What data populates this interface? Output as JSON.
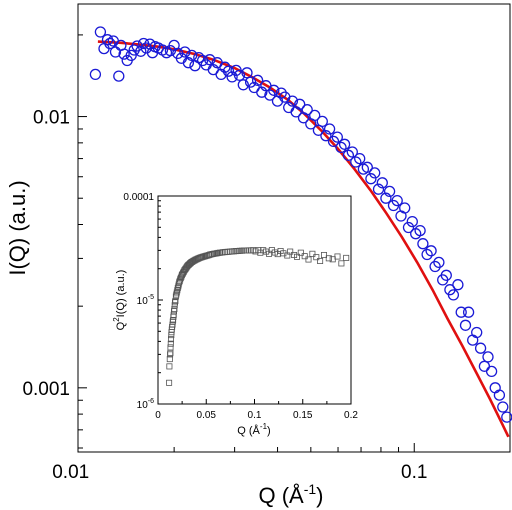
{
  "chart_data": [
    {
      "type": "scatter",
      "x_scale": "log",
      "y_scale": "log",
      "xlim": [
        0.0105,
        0.19
      ],
      "ylim": [
        0.00058,
        0.026
      ],
      "xlabel": "Q (Å",
      "xlabel_sup": "-1",
      "xlabel_end": ")",
      "ylabel": "I(Q) (a.u.)",
      "x_ticks": [
        {
          "value": 0.01,
          "label": "0.01"
        },
        {
          "value": 0.1,
          "label": "0.1"
        }
      ],
      "y_ticks": [
        {
          "value": 0.001,
          "label": "0.001"
        },
        {
          "value": 0.01,
          "label": "0.01"
        }
      ],
      "marker_color": "#1a1ad6",
      "fit_color": "#e01010",
      "series": [
        {
          "kind": "markers",
          "x": [
            0.0118,
            0.0122,
            0.0125,
            0.0128,
            0.013,
            0.0133,
            0.0135,
            0.0138,
            0.014,
            0.0143,
            0.0146,
            0.015,
            0.0153,
            0.0156,
            0.016,
            0.0163,
            0.0166,
            0.017,
            0.0173,
            0.0176,
            0.018,
            0.0185,
            0.019,
            0.0195,
            0.02,
            0.0205,
            0.021,
            0.0215,
            0.022,
            0.0225,
            0.023,
            0.0236,
            0.0242,
            0.0248,
            0.0254,
            0.026,
            0.0267,
            0.0274,
            0.0281,
            0.0288,
            0.0295,
            0.0303,
            0.031,
            0.0318,
            0.0326,
            0.0334,
            0.0342,
            0.035,
            0.036,
            0.037,
            0.038,
            0.039,
            0.04,
            0.041,
            0.042,
            0.0431,
            0.0442,
            0.0453,
            0.0464,
            0.0476,
            0.0488,
            0.05,
            0.0513,
            0.0526,
            0.054,
            0.0553,
            0.0567,
            0.0582,
            0.0597,
            0.0612,
            0.0627,
            0.0643,
            0.066,
            0.0676,
            0.0694,
            0.0711,
            0.073,
            0.0748,
            0.0767,
            0.0787,
            0.0807,
            0.0827,
            0.0848,
            0.087,
            0.0892,
            0.0915,
            0.0938,
            0.0962,
            0.0987,
            0.101,
            0.104,
            0.106,
            0.109,
            0.112,
            0.115,
            0.118,
            0.121,
            0.124,
            0.127,
            0.13,
            0.134,
            0.137,
            0.141,
            0.144,
            0.148,
            0.152,
            0.156,
            0.16,
            0.164,
            0.168,
            0.172,
            0.177,
            0.181,
            0.186
          ],
          "y": [
            0.0143,
            0.0205,
            0.0178,
            0.0192,
            0.0186,
            0.019,
            0.0173,
            0.0141,
            0.0183,
            0.017,
            0.0161,
            0.0168,
            0.0176,
            0.0182,
            0.0174,
            0.0186,
            0.0179,
            0.0185,
            0.0172,
            0.0181,
            0.0179,
            0.0176,
            0.0172,
            0.0175,
            0.0183,
            0.0171,
            0.0164,
            0.0173,
            0.0158,
            0.0168,
            0.0154,
            0.0165,
            0.0161,
            0.0155,
            0.0162,
            0.0149,
            0.0158,
            0.0143,
            0.0152,
            0.0147,
            0.014,
            0.0148,
            0.0142,
            0.0131,
            0.0145,
            0.0134,
            0.0128,
            0.0136,
            0.0123,
            0.013,
            0.012,
            0.0125,
            0.0114,
            0.0122,
            0.0118,
            0.0108,
            0.0114,
            0.0104,
            0.0111,
            0.0099,
            0.0106,
            0.0094,
            0.0101,
            0.0089,
            0.0096,
            0.0085,
            0.009,
            0.0081,
            0.0084,
            0.0077,
            0.0079,
            0.0072,
            0.0074,
            0.0068,
            0.007,
            0.0064,
            0.0065,
            0.0059,
            0.0062,
            0.0054,
            0.0057,
            0.005,
            0.0053,
            0.0047,
            0.0049,
            0.0043,
            0.0046,
            0.0039,
            0.0041,
            0.0037,
            0.0038,
            0.0034,
            0.0031,
            0.0032,
            0.0028,
            0.0029,
            0.0025,
            0.0026,
            0.0023,
            0.0022,
            0.0024,
            0.0019,
            0.0017,
            0.0019,
            0.0015,
            0.0016,
            0.0014,
            0.0012,
            0.0013,
            0.00115,
            0.001,
            0.00094,
            0.00085,
            0.00078
          ]
        },
        {
          "kind": "fit",
          "x": [
            0.012,
            0.014,
            0.016,
            0.018,
            0.02,
            0.023,
            0.026,
            0.03,
            0.034,
            0.038,
            0.043,
            0.048,
            0.054,
            0.06,
            0.067,
            0.075,
            0.083,
            0.092,
            0.102,
            0.113,
            0.125,
            0.138,
            0.152,
            0.166,
            0.18,
            0.188
          ],
          "y": [
            0.0189,
            0.0187,
            0.0184,
            0.0181,
            0.0177,
            0.017,
            0.0162,
            0.0151,
            0.0139,
            0.0128,
            0.0115,
            0.0102,
            0.0088,
            0.0076,
            0.0064,
            0.0053,
            0.0044,
            0.0036,
            0.0029,
            0.0023,
            0.0018,
            0.00143,
            0.00113,
            0.00091,
            0.00074,
            0.00066
          ]
        }
      ]
    },
    {
      "type": "scatter",
      "x_scale": "linear",
      "y_scale": "log",
      "xlim": [
        0,
        0.2
      ],
      "ylim": [
        1e-06,
        0.0001
      ],
      "xlabel": "Q (Å",
      "xlabel_sup": "-1",
      "xlabel_end": ")",
      "ylabel_pre": "Q",
      "ylabel_sup": "2",
      "ylabel_post": "I(Q) (a.u.)",
      "x_ticks": [
        {
          "value": 0,
          "label": "0"
        },
        {
          "value": 0.05,
          "label": "0.05"
        },
        {
          "value": 0.1,
          "label": "0.1"
        },
        {
          "value": 0.15,
          "label": "0.15"
        },
        {
          "value": 0.2,
          "label": "0.2"
        }
      ],
      "y_ticks": [
        {
          "value": 1e-06,
          "base": "10",
          "exp": "-6"
        },
        {
          "value": 1e-05,
          "base": "10",
          "exp": "-5"
        },
        {
          "value": 0.0001,
          "label": "0.0001"
        }
      ],
      "marker_color": "#555555",
      "series": [
        {
          "kind": "markers",
          "x": [
            0.0115,
            0.0118,
            0.0122,
            0.0125,
            0.0128,
            0.013,
            0.0133,
            0.0135,
            0.0138,
            0.014,
            0.0143,
            0.0146,
            0.015,
            0.0153,
            0.0156,
            0.016,
            0.0163,
            0.0166,
            0.017,
            0.0173,
            0.0176,
            0.018,
            0.0185,
            0.019,
            0.0195,
            0.02,
            0.0205,
            0.021,
            0.0215,
            0.022,
            0.0225,
            0.023,
            0.0236,
            0.0242,
            0.0248,
            0.0254,
            0.026,
            0.0267,
            0.0274,
            0.0281,
            0.0288,
            0.0295,
            0.0303,
            0.031,
            0.0318,
            0.0326,
            0.0334,
            0.0342,
            0.035,
            0.036,
            0.037,
            0.038,
            0.039,
            0.04,
            0.041,
            0.042,
            0.0431,
            0.0442,
            0.0453,
            0.0464,
            0.0476,
            0.0488,
            0.05,
            0.0513,
            0.0526,
            0.054,
            0.0553,
            0.0567,
            0.0582,
            0.0597,
            0.0612,
            0.0627,
            0.0643,
            0.066,
            0.0676,
            0.0694,
            0.0711,
            0.073,
            0.0748,
            0.0767,
            0.0787,
            0.0807,
            0.0827,
            0.0848,
            0.087,
            0.0892,
            0.0915,
            0.0938,
            0.0962,
            0.0987,
            0.101,
            0.104,
            0.106,
            0.109,
            0.112,
            0.115,
            0.118,
            0.121,
            0.124,
            0.127,
            0.13,
            0.134,
            0.137,
            0.141,
            0.144,
            0.148,
            0.152,
            0.156,
            0.16,
            0.164,
            0.168,
            0.172,
            0.177,
            0.181,
            0.186,
            0.19,
            0.195
          ],
          "y": [
            1.6e-06,
            2.3e-06,
            2.7e-06,
            3e-06,
            3.1e-06,
            3.5e-06,
            3.8e-06,
            4.2e-06,
            4.6e-06,
            4.9e-06,
            5.2e-06,
            5.5e-06,
            5.8e-06,
            6.2e-06,
            6.4e-06,
            6.9e-06,
            7.2e-06,
            7.8e-06,
            8.2e-06,
            8.9e-06,
            9.5e-06,
            9.8e-06,
            1.08e-05,
            1.13e-05,
            1.18e-05,
            1.24e-05,
            1.3e-05,
            1.35e-05,
            1.41e-05,
            1.48e-05,
            1.52e-05,
            1.58e-05,
            1.63e-05,
            1.68e-05,
            1.74e-05,
            1.78e-05,
            1.83e-05,
            1.87e-05,
            1.93e-05,
            1.97e-05,
            2.01e-05,
            2.06e-05,
            2.11e-05,
            2.15e-05,
            2.18e-05,
            2.22e-05,
            2.26e-05,
            2.29e-05,
            2.32e-05,
            2.35e-05,
            2.38e-05,
            2.41e-05,
            2.44e-05,
            2.46e-05,
            2.49e-05,
            2.51e-05,
            2.54e-05,
            2.56e-05,
            2.58e-05,
            2.6e-05,
            2.62e-05,
            2.64e-05,
            2.66e-05,
            2.68e-05,
            2.7e-05,
            2.73e-05,
            2.75e-05,
            2.77e-05,
            2.79e-05,
            2.8e-05,
            2.82e-05,
            2.84e-05,
            2.85e-05,
            2.86e-05,
            2.88e-05,
            2.89e-05,
            2.9e-05,
            2.91e-05,
            2.92e-05,
            2.93e-05,
            2.94e-05,
            2.95e-05,
            2.96e-05,
            2.97e-05,
            2.98e-05,
            2.99e-05,
            2.99e-05,
            3e-05,
            3e-05,
            3.01e-05,
            2.93e-05,
            3.02e-05,
            2.85e-05,
            3.01e-05,
            2.92e-05,
            2.78e-05,
            3.02e-05,
            2.86e-05,
            2.76e-05,
            2.96e-05,
            2.81e-05,
            2.68e-05,
            2.92e-05,
            2.71e-05,
            2.6e-05,
            2.85e-05,
            2.64e-05,
            2.45e-05,
            2.78e-05,
            2.58e-05,
            2.37e-05,
            2.71e-05,
            2.52e-05,
            2.46e-05,
            2.62e-05,
            2.25e-05,
            2.54e-05
          ]
        }
      ]
    }
  ]
}
